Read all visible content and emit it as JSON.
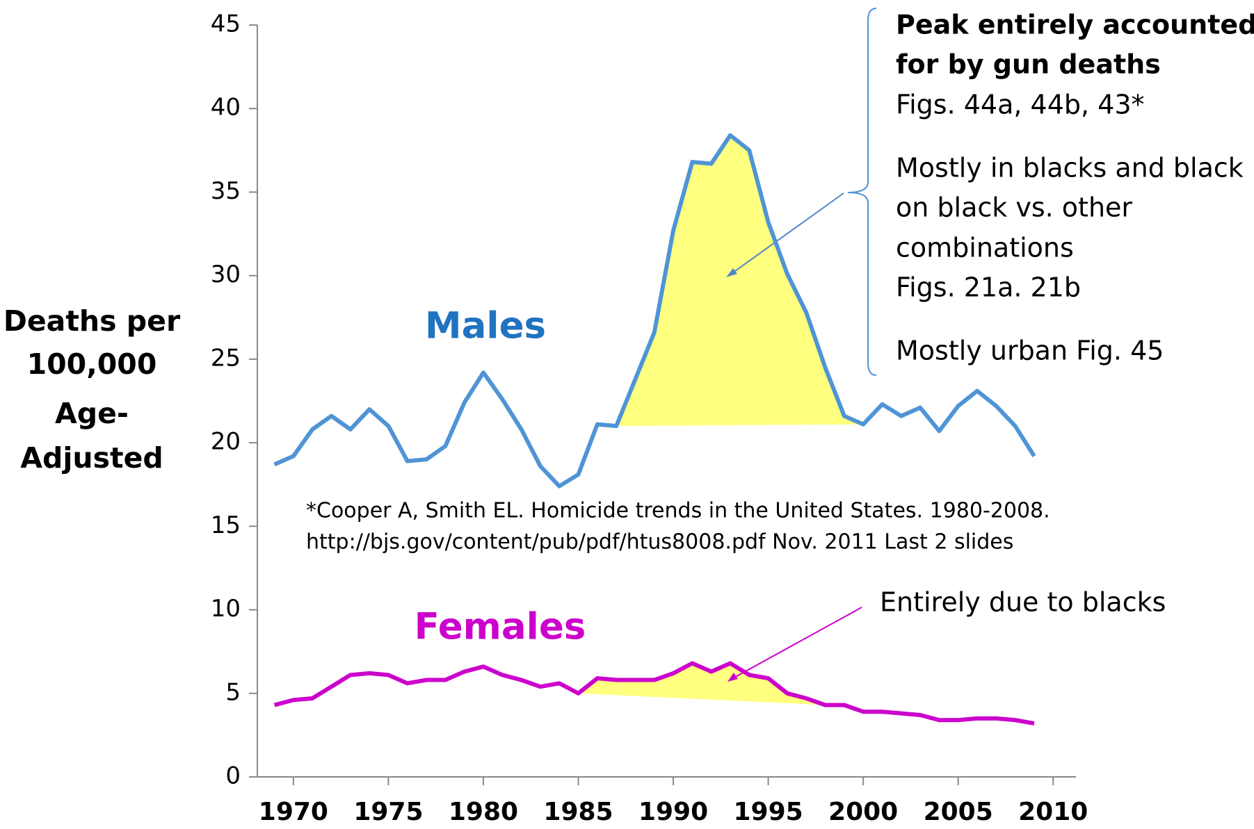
{
  "chart_data": {
    "type": "line",
    "ylabel": [
      "Deaths per",
      "100,000",
      "Age-",
      "Adjusted"
    ],
    "x": [
      1969,
      1970,
      1971,
      1972,
      1973,
      1974,
      1975,
      1976,
      1977,
      1978,
      1979,
      1980,
      1981,
      1982,
      1983,
      1984,
      1985,
      1986,
      1987,
      1988,
      1989,
      1990,
      1991,
      1992,
      1993,
      1994,
      1995,
      1996,
      1997,
      1998,
      1999,
      2000,
      2001,
      2002,
      2003,
      2004,
      2005,
      2006,
      2007,
      2008,
      2009
    ],
    "series": [
      {
        "name": "Males",
        "color": "#4f94d6",
        "label_color": "#1f73c0",
        "values": [
          18.7,
          19.2,
          20.8,
          21.6,
          20.8,
          22.0,
          21.0,
          18.9,
          19.0,
          19.8,
          22.4,
          24.2,
          22.6,
          20.8,
          18.6,
          17.4,
          18.1,
          21.1,
          21.0,
          23.8,
          26.6,
          32.7,
          36.8,
          36.7,
          38.4,
          37.5,
          33.2,
          30.1,
          27.8,
          24.5,
          21.6,
          21.1,
          22.3,
          21.6,
          22.1,
          20.7,
          22.2,
          23.1,
          22.2,
          21.0,
          19.2
        ]
      },
      {
        "name": "Females",
        "color": "#cc00cc",
        "label_color": "#cc00cc",
        "values": [
          4.3,
          4.6,
          4.7,
          5.4,
          6.1,
          6.2,
          6.1,
          5.6,
          5.8,
          5.8,
          6.3,
          6.6,
          6.1,
          5.8,
          5.4,
          5.6,
          5.0,
          5.9,
          5.8,
          5.8,
          5.8,
          6.2,
          6.8,
          6.3,
          6.8,
          6.1,
          5.9,
          5.0,
          4.7,
          4.3,
          4.3,
          3.9,
          3.9,
          3.8,
          3.7,
          3.4,
          3.4,
          3.5,
          3.5,
          3.4,
          3.2
        ]
      }
    ],
    "xlim": [
      1968.1,
      2011.2
    ],
    "xticks": [
      1970,
      1975,
      1980,
      1985,
      1990,
      1995,
      2000,
      2005,
      2010
    ],
    "ylim": [
      0,
      45
    ],
    "yticks": [
      0,
      5,
      10,
      15,
      20,
      25,
      30,
      35,
      40,
      45
    ],
    "highlight_color": "#ffff80",
    "annotations": {
      "peak_bold": [
        "Peak entirely accounted",
        "for by gun deaths"
      ],
      "peak_notes": [
        "Figs. 44a, 44b, 43*",
        "Mostly in blacks and black",
        "on black vs. other",
        "combinations",
        "Figs. 21a. 21b",
        "Mostly urban  Fig. 45"
      ],
      "footnote": [
        "*Cooper A, Smith EL. Homicide trends in the United States. 1980-2008.",
        "http://bjs.gov/content/pub/pdf/htus8008.pdf   Nov. 2011   Last 2 slides"
      ],
      "female_note": "Entirely due to blacks"
    }
  }
}
